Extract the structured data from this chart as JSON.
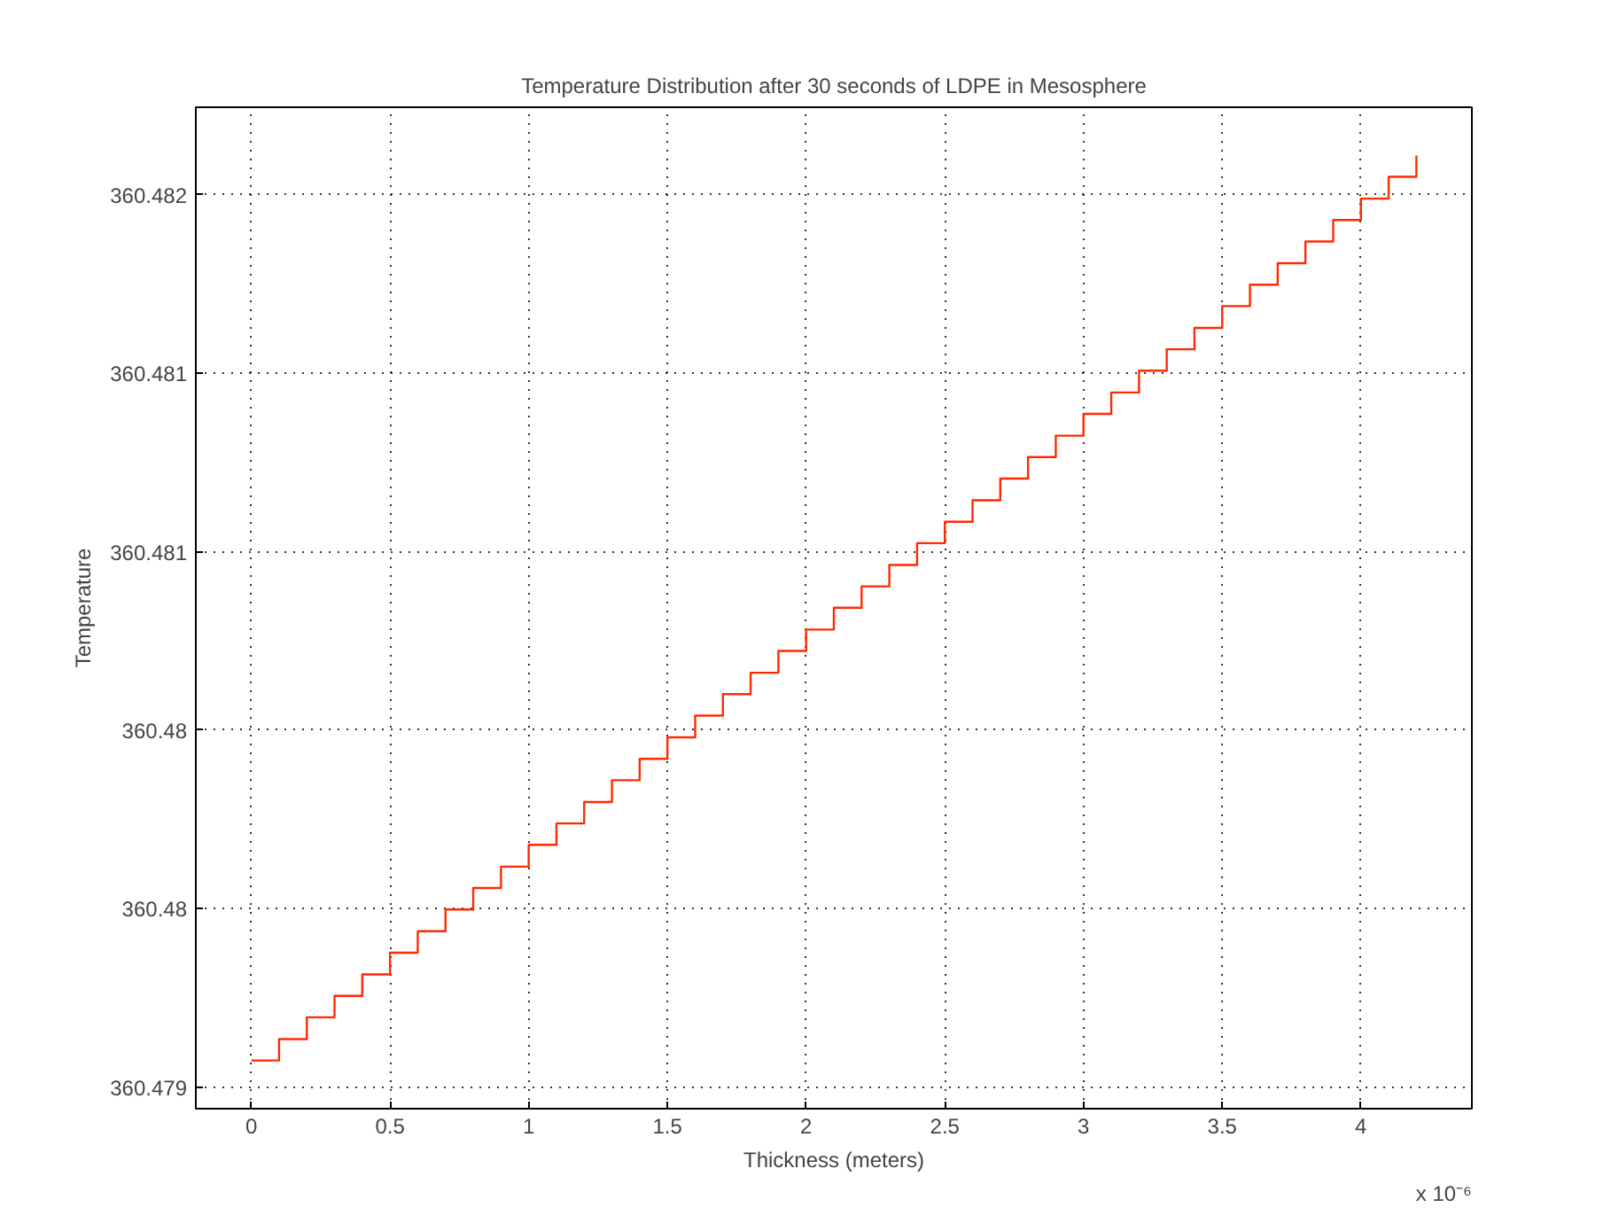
{
  "chart_data": {
    "type": "step",
    "title": "Temperature Distribution after 30 seconds of LDPE in Mesosphere",
    "xlabel": "Thickness (meters)",
    "ylabel": "Temperature",
    "annotations": [
      "x 10⁻⁶"
    ],
    "x": [
      0,
      0.1,
      0.2,
      0.3,
      0.4,
      0.5,
      0.6,
      0.7,
      0.8,
      0.9,
      1.0,
      1.1,
      1.2,
      1.3,
      1.4,
      1.5,
      1.6,
      1.7,
      1.8,
      1.9,
      2.0,
      2.1,
      2.2,
      2.3,
      2.4,
      2.5,
      2.6,
      2.7,
      2.8,
      2.9,
      3.0,
      3.1,
      3.2,
      3.3,
      3.4,
      3.5,
      3.6,
      3.7,
      3.8,
      3.9,
      4.0,
      4.1,
      4.2
    ],
    "series": [
      {
        "color": "#ff2a00",
        "values": [
          360.479075,
          360.479135,
          360.479196,
          360.479256,
          360.479316,
          360.479377,
          360.479437,
          360.479498,
          360.479558,
          360.479618,
          360.479679,
          360.479739,
          360.479799,
          360.47986,
          360.47992,
          360.47998,
          360.480041,
          360.480101,
          360.480161,
          360.480222,
          360.480282,
          360.480343,
          360.480403,
          360.480463,
          360.480524,
          360.480584,
          360.480644,
          360.480705,
          360.480765,
          360.480825,
          360.480886,
          360.480946,
          360.481007,
          360.481067,
          360.481127,
          360.481188,
          360.481248,
          360.481308,
          360.481369,
          360.481429,
          360.481489,
          360.48155,
          360.48161
        ]
      }
    ],
    "xlim": [
      -0.2,
      4.4
    ],
    "xticks": [
      0,
      0.5,
      1,
      1.5,
      2,
      2.5,
      3,
      3.5,
      4
    ],
    "ylim": [
      360.47894,
      360.481745
    ],
    "yticks": [
      360.479,
      {
        "value": 360.4795,
        "label": "360.48"
      },
      {
        "value": 360.48,
        "label": "360.48"
      },
      {
        "value": 360.4805,
        "label": "360.481"
      },
      {
        "value": 360.481,
        "label": "360.481"
      },
      {
        "value": 360.4815,
        "label": "360.482"
      }
    ],
    "grid": true,
    "line_style": "solid"
  }
}
